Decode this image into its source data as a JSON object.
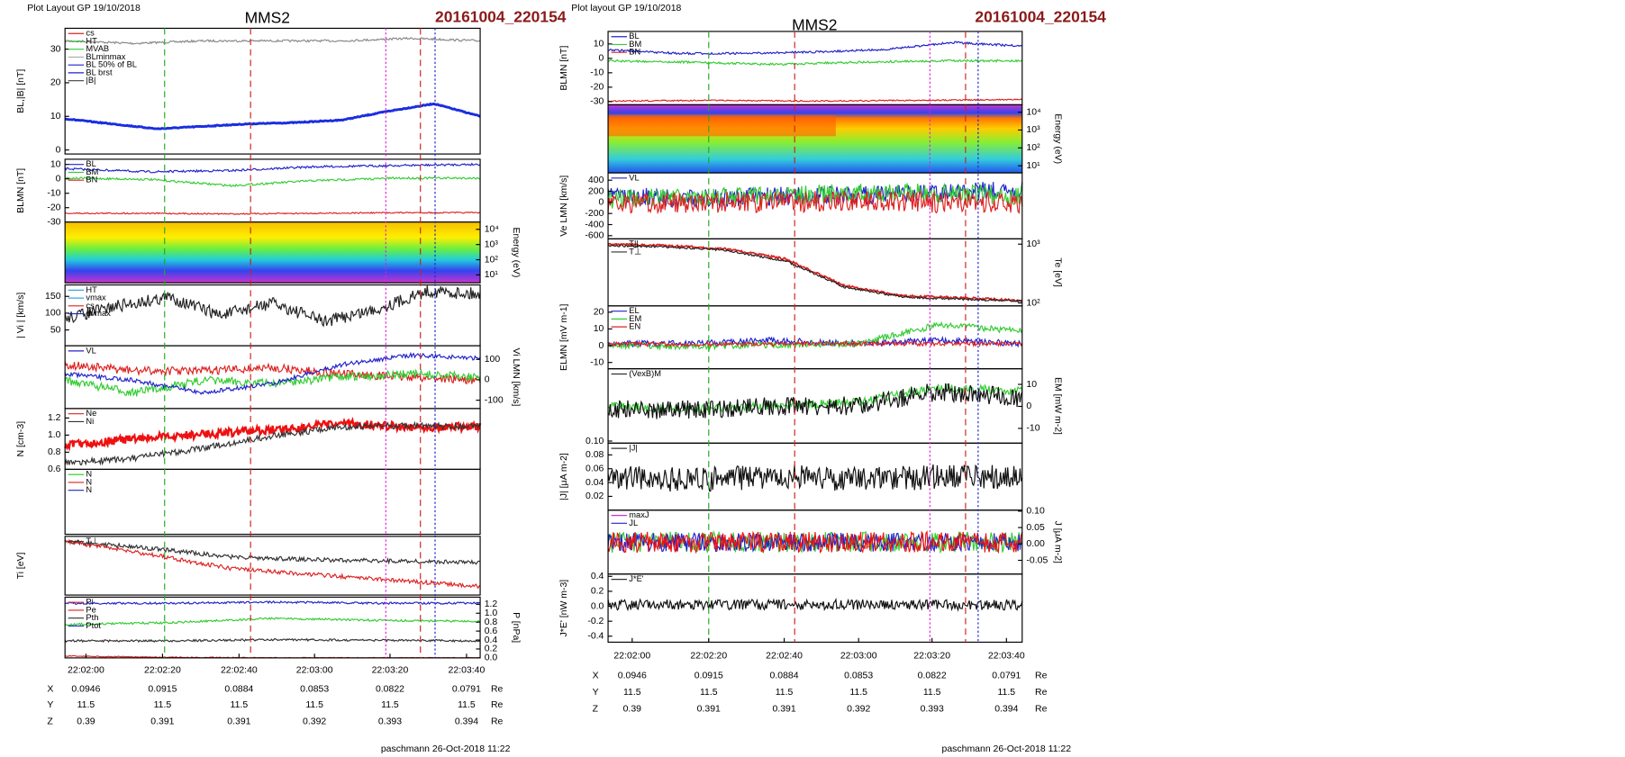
{
  "plots": [
    {
      "header": "Plot Layout GP 19/10/2018",
      "title": "MMS2",
      "run": "20161004_220154",
      "panels": [
        {
          "ylabel": "BL,|B| [nT]",
          "axis": "left",
          "ylim": [
            -1.2,
            36.2
          ],
          "yticks": [
            0,
            10,
            20,
            30
          ],
          "legend": [
            {
              "name": "cs",
              "color": "#d22"
            },
            {
              "name": "HT",
              "color": "#2a2"
            },
            {
              "name": "MVAB",
              "color": "#3c3"
            },
            {
              "name": "BLminmax",
              "color": "#aaa"
            },
            {
              "name": "BL 50% of BL",
              "color": "#22c"
            },
            {
              "name": "BL brst",
              "color": "#22c"
            },
            {
              "name": "|B|",
              "color": "#555"
            }
          ]
        },
        {
          "ylabel": "BLMN [nT]",
          "axis": "left",
          "ylim": [
            -30,
            13.6
          ],
          "yticks": [
            -30,
            -20,
            -10,
            0,
            10
          ],
          "legend": [
            {
              "name": "BL",
              "color": "#22c"
            },
            {
              "name": "BM",
              "color": "#3c3"
            },
            {
              "name": "BN",
              "color": "#d22"
            }
          ]
        },
        {
          "ylabel": "Energy (eV)",
          "axis": "right",
          "log": true,
          "ylim": [
            3,
            30000
          ],
          "yticks": [
            {
              "value": 10,
              "label": "10¹"
            },
            {
              "value": 100,
              "label": "10²"
            },
            {
              "value": 1000,
              "label": "10³"
            },
            {
              "value": 10000,
              "label": "10⁴"
            }
          ],
          "spectrogram": "ion"
        },
        {
          "ylabel": "| Vi | [km/s]",
          "axis": "left",
          "ylim": [
            3,
            184
          ],
          "yticks": [
            50,
            100,
            150
          ],
          "legend": [
            {
              "name": "HT",
              "color": "#3ad"
            },
            {
              "name": "vmax",
              "color": "#3ad"
            },
            {
              "name": "cs",
              "color": "#d22"
            },
            {
              "name": "dvmax",
              "color": "#22c"
            }
          ]
        },
        {
          "ylabel": "Vi LMN [km/s]",
          "axis": "right",
          "ylim": [
            -141,
            167
          ],
          "yticks": [
            -100,
            0,
            100
          ],
          "legend": [
            {
              "name": "VL",
              "color": "#22c"
            }
          ]
        },
        {
          "ylabel": "N [cm-3]",
          "axis": "left",
          "ylim": [
            0.6,
            1.31
          ],
          "yticks": [
            {
              "value": 0.6,
              "label": "0.6"
            },
            {
              "value": 0.8,
              "label": "0.8"
            },
            {
              "value": 1,
              "label": "1.0"
            },
            {
              "value": 1.2,
              "label": "1.2"
            }
          ],
          "legend": [
            {
              "name": "Ne",
              "color": "#d22"
            },
            {
              "name": "Ni",
              "color": "#333"
            }
          ]
        },
        {
          "ylabel": "",
          "axis": "left",
          "ylim": [
            0,
            1
          ],
          "yticks": [],
          "legend": [
            {
              "name": "N",
              "color": "#2c2"
            },
            {
              "name": "N",
              "color": "#d22"
            },
            {
              "name": "N",
              "color": "#22c"
            }
          ]
        },
        {
          "ylabel": "Ti [eV]",
          "axis": "left",
          "ylim": [
            0,
            1
          ],
          "yticks": [],
          "legend": [
            {
              "name": "T⊥",
              "color": "#333"
            }
          ]
        },
        {
          "ylabel": "P [nPa]",
          "axis": "right",
          "ylim": [
            0,
            1.36
          ],
          "yticks": [
            {
              "value": 0,
              "label": "0.0"
            },
            {
              "value": 0.2,
              "label": "0.2"
            },
            {
              "value": 0.4,
              "label": "0.4"
            },
            {
              "value": 0.6,
              "label": "0.6"
            },
            {
              "value": 0.8,
              "label": "0.8"
            },
            {
              "value": 1,
              "label": "1.0"
            },
            {
              "value": 1.2,
              "label": "1.2"
            }
          ],
          "legend": [
            {
              "name": "Pi",
              "color": "#d22"
            },
            {
              "name": "Pe",
              "color": "#d22"
            },
            {
              "name": "Pth",
              "color": "#333"
            },
            {
              "name": "Ptot",
              "color": "#22c"
            }
          ]
        }
      ],
      "xticks": [
        "22:02:00",
        "22:02:20",
        "22:02:40",
        "22:03:00",
        "22:03:20",
        "22:03:40"
      ],
      "ephemeris": [
        {
          "name": "X",
          "values": [
            "0.0946",
            "0.0915",
            "0.0884",
            "0.0853",
            "0.0822",
            "0.0791"
          ],
          "unit": "Re"
        },
        {
          "name": "Y",
          "values": [
            "11.5",
            "11.5",
            "11.5",
            "11.5",
            "11.5",
            "11.5"
          ],
          "unit": "Re"
        },
        {
          "name": "Z",
          "values": [
            "0.39",
            "0.391",
            "0.391",
            "0.392",
            "0.393",
            "0.394"
          ],
          "unit": "Re"
        }
      ],
      "footer": "paschmann 26-Oct-2018 11:22"
    },
    {
      "header": "Plot layout GP 19/10/2018",
      "title": "MMS2",
      "run": "20161004_220154",
      "panels": [
        {
          "ylabel": "BLMN [nT]",
          "axis": "left",
          "ylim": [
            -32.2,
            18.7
          ],
          "yticks": [
            -30,
            -20,
            -10,
            0,
            10
          ],
          "legend": [
            {
              "name": "BL",
              "color": "#22c"
            },
            {
              "name": "BM",
              "color": "#3c3"
            },
            {
              "name": "BN",
              "color": "#d22"
            }
          ]
        },
        {
          "ylabel": "Energy (eV)",
          "axis": "right",
          "log": true,
          "ylim": [
            4,
            26000
          ],
          "yticks": [
            {
              "value": 10,
              "label": "10¹"
            },
            {
              "value": 100,
              "label": "10²"
            },
            {
              "value": 1000,
              "label": "10³"
            },
            {
              "value": 10000,
              "label": "10⁴"
            }
          ],
          "spectrogram": "electron"
        },
        {
          "ylabel": "Ve LMN [km/s]",
          "axis": "left",
          "ylim": [
            -657,
            532
          ],
          "yticks": [
            -600,
            -400,
            -200,
            0,
            200,
            400
          ],
          "legend": [
            {
              "name": "VL",
              "color": "#22c"
            }
          ]
        },
        {
          "ylabel": "Te [eV]",
          "axis": "right",
          "log": true,
          "ylim": [
            89,
            1230
          ],
          "yticks": [
            {
              "value": 100,
              "label": "10²"
            },
            {
              "value": 1000,
              "label": "10³"
            }
          ],
          "legend": [
            {
              "name": "T||",
              "color": "#d22"
            },
            {
              "name": "T⊥",
              "color": "#333"
            }
          ]
        },
        {
          "ylabel": "ELMN [mV m-1]",
          "axis": "left",
          "ylim": [
            -13.75,
            23.75
          ],
          "yticks": [
            -10,
            0,
            10,
            20
          ],
          "legend": [
            {
              "name": "EL",
              "color": "#22c"
            },
            {
              "name": "EM",
              "color": "#3c3"
            },
            {
              "name": "EN",
              "color": "#d22"
            }
          ]
        },
        {
          "ylabel": "EM [mW m-2]",
          "axis": "right",
          "ylim": [
            -16.7,
            17.1
          ],
          "yticks": [
            -10,
            0,
            10
          ],
          "legend": [
            {
              "name": "(VexB)M",
              "color": "#333"
            }
          ]
        },
        {
          "ylabel": "|J| [μA m-2]",
          "axis": "left",
          "ylim": [
            0,
            0.097
          ],
          "yticks": [
            {
              "value": 0.02,
              "label": "0.02"
            },
            {
              "value": 0.04,
              "label": "0.04"
            },
            {
              "value": 0.06,
              "label": "0.06"
            },
            {
              "value": 0.08,
              "label": "0.08"
            },
            {
              "value": 0.1,
              "label": "0.10"
            }
          ],
          "legend": [
            {
              "name": "|J|",
              "color": "#333"
            }
          ]
        },
        {
          "ylabel": "J [μA m-2]",
          "axis": "right",
          "ylim": [
            -0.092,
            0.103
          ],
          "yticks": [
            -0.05,
            {
              "value": 0,
              "label": "0.00"
            },
            0.05,
            {
              "value": 0.1,
              "label": "0.10"
            }
          ],
          "legend": [
            {
              "name": "maxJ",
              "color": "#c3c"
            },
            {
              "name": "JL",
              "color": "#22c"
            }
          ]
        },
        {
          "ylabel": "J*E' [nW m-3]",
          "axis": "left",
          "ylim": [
            -0.48,
            0.43
          ],
          "yticks": [
            -0.4,
            -0.2,
            {
              "value": 0,
              "label": "0.0"
            },
            0.2,
            0.4
          ],
          "legend": [
            {
              "name": "J*E'",
              "color": "#333"
            }
          ]
        }
      ],
      "xticks": [
        "22:02:00",
        "22:02:20",
        "22:02:40",
        "22:03:00",
        "22:03:20",
        "22:03:40"
      ],
      "ephemeris": [
        {
          "name": "X",
          "values": [
            "0.0946",
            "0.0915",
            "0.0884",
            "0.0853",
            "0.0822",
            "0.0791"
          ],
          "unit": "Re"
        },
        {
          "name": "Y",
          "values": [
            "11.5",
            "11.5",
            "11.5",
            "11.5",
            "11.5",
            "11.5"
          ],
          "unit": "Re"
        },
        {
          "name": "Z",
          "values": [
            "0.39",
            "0.391",
            "0.391",
            "0.392",
            "0.393",
            "0.394"
          ],
          "unit": "Re"
        }
      ],
      "footer": "paschmann 26-Oct-2018 11:22"
    }
  ]
}
